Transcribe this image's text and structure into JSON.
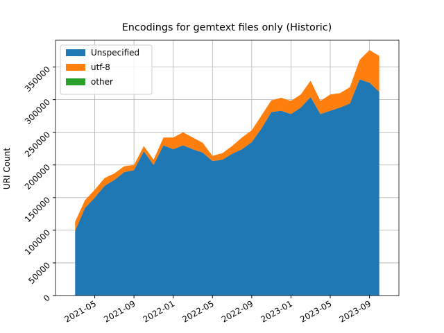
{
  "chart_data": {
    "type": "stacked_area",
    "title": "Encodings for gemtext files only (Historic)",
    "y_label": "URI Count",
    "x": [
      "2021-03",
      "2021-04",
      "2021-05",
      "2021-06",
      "2021-07",
      "2021-08",
      "2021-09",
      "2021-10",
      "2021-11",
      "2021-12",
      "2022-01",
      "2022-02",
      "2022-03",
      "2022-04",
      "2022-05",
      "2022-06",
      "2022-07",
      "2022-08",
      "2022-09",
      "2022-10",
      "2022-11",
      "2022-12",
      "2023-01",
      "2023-02",
      "2023-03",
      "2023-04",
      "2023-05",
      "2023-06",
      "2023-07",
      "2023-08",
      "2023-09",
      "2023-10"
    ],
    "series": [
      {
        "name": "Unspecified",
        "color": "#1f77b4",
        "values": [
          99000,
          134000,
          150000,
          168000,
          177000,
          189000,
          192000,
          221000,
          200000,
          230000,
          224000,
          230000,
          224000,
          219000,
          206000,
          208000,
          217000,
          224000,
          235000,
          256000,
          281000,
          283000,
          278000,
          288000,
          304000,
          278000,
          283000,
          288000,
          294000,
          331000,
          326000,
          312000
        ]
      },
      {
        "name": "utf-8",
        "color": "#ff7f0e",
        "values": [
          14000,
          12000,
          12000,
          12000,
          10000,
          9000,
          8000,
          8000,
          8000,
          12000,
          18000,
          20000,
          18000,
          15000,
          8000,
          10000,
          12000,
          18000,
          18000,
          20000,
          18000,
          20000,
          20000,
          20000,
          25000,
          20000,
          25000,
          22000,
          25000,
          30000,
          50000,
          55000
        ]
      },
      {
        "name": "other",
        "color": "#2ca02c",
        "values": [
          0,
          0,
          0,
          0,
          0,
          0,
          0,
          0,
          0,
          0,
          0,
          0,
          0,
          0,
          0,
          0,
          0,
          0,
          0,
          0,
          0,
          0,
          0,
          0,
          0,
          0,
          0,
          0,
          0,
          0,
          0,
          0
        ]
      }
    ],
    "xlim": [
      "2021-01",
      "2023-12"
    ],
    "xticks": [
      "2021-05",
      "2021-09",
      "2022-01",
      "2022-05",
      "2022-09",
      "2023-01",
      "2023-05",
      "2023-09"
    ],
    "ylim": [
      0,
      391000
    ],
    "yticks": [
      0,
      50000,
      100000,
      150000,
      200000,
      250000,
      300000,
      350000
    ],
    "grid": true,
    "legend": "upper left"
  }
}
